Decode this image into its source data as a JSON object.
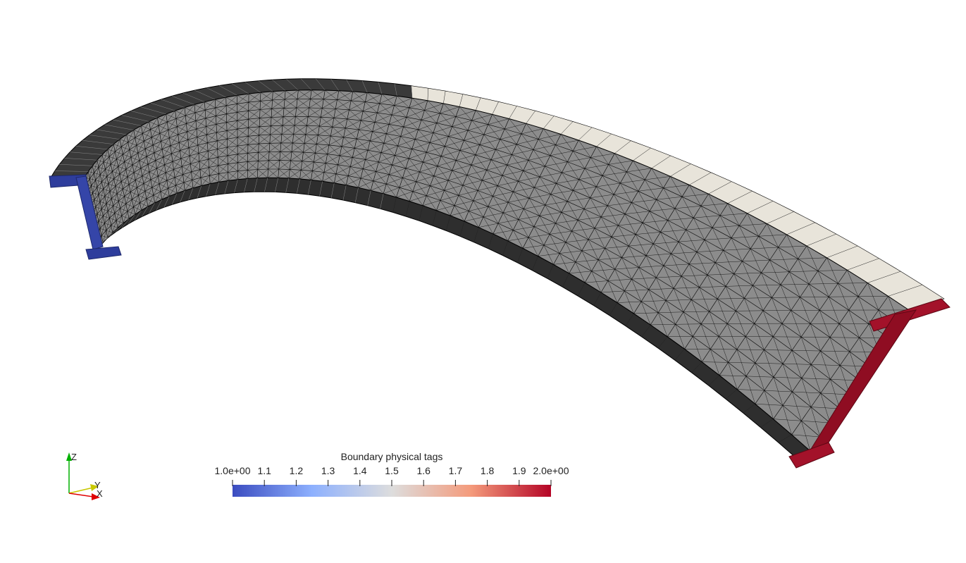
{
  "colorbar": {
    "title": "Boundary physical tags",
    "ticks": [
      {
        "label": "1.0e+00",
        "value": 1.0
      },
      {
        "label": "1.1",
        "value": 1.1
      },
      {
        "label": "1.2",
        "value": 1.2
      },
      {
        "label": "1.3",
        "value": 1.3
      },
      {
        "label": "1.4",
        "value": 1.4
      },
      {
        "label": "1.5",
        "value": 1.5
      },
      {
        "label": "1.6",
        "value": 1.6
      },
      {
        "label": "1.7",
        "value": 1.7
      },
      {
        "label": "1.8",
        "value": 1.8
      },
      {
        "label": "1.9",
        "value": 1.9
      },
      {
        "label": "2.0e+00",
        "value": 2.0
      }
    ],
    "range": [
      1.0,
      2.0
    ],
    "colormap": [
      "#3b4cc0",
      "#8db0fe",
      "#dddddd",
      "#f49a7b",
      "#b40426"
    ]
  },
  "axes": {
    "z": "Z",
    "y": "Y",
    "x": "X"
  },
  "colors": {
    "tag_1": "#2a3a9a",
    "tag_2": "#9a0f25",
    "mesh_face": "#8a8a8a",
    "mesh_edge": "#000000",
    "mesh_light": "#e6e2d8",
    "mesh_dark": "#4a4a4a",
    "axis_x": "#e00000",
    "axis_y": "#c8c800",
    "axis_z": "#00b000"
  }
}
